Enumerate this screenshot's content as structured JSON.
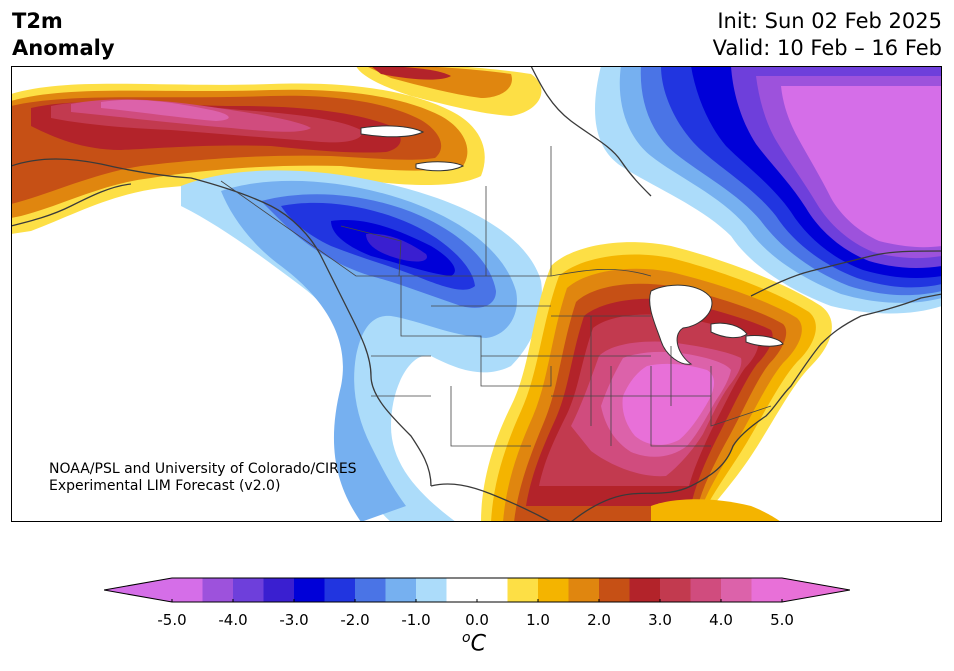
{
  "header": {
    "title_line1": "T2m",
    "title_line2": "Anomaly",
    "init": "Init: Sun 02 Feb 2025",
    "valid": "Valid: 10 Feb – 16 Feb"
  },
  "map": {
    "region": "North America",
    "credit_line1": "NOAA/PSL and University of Colorado/CIRES",
    "credit_line2": "Experimental LIM Forecast (v2.0)"
  },
  "colorbar": {
    "ticks": [
      "-5.0",
      "-4.0",
      "-3.0",
      "-2.0",
      "-1.0",
      "0.0",
      "1.0",
      "2.0",
      "3.0",
      "4.0",
      "5.0"
    ],
    "unit_base": "o",
    "unit_main": "C",
    "colors": [
      "#d56ee8",
      "#9d52dc",
      "#6e3fdb",
      "#3a1fd0",
      "#0000d8",
      "#2135e0",
      "#4a74e6",
      "#76b0f0",
      "#acdcfa",
      "#ffffff",
      "#ffffff",
      "#fddf45",
      "#f4b400",
      "#e0860f",
      "#c65015",
      "#b3232a",
      "#c23a4f",
      "#d04c7e",
      "#dc62aa",
      "#e870d8"
    ]
  }
}
